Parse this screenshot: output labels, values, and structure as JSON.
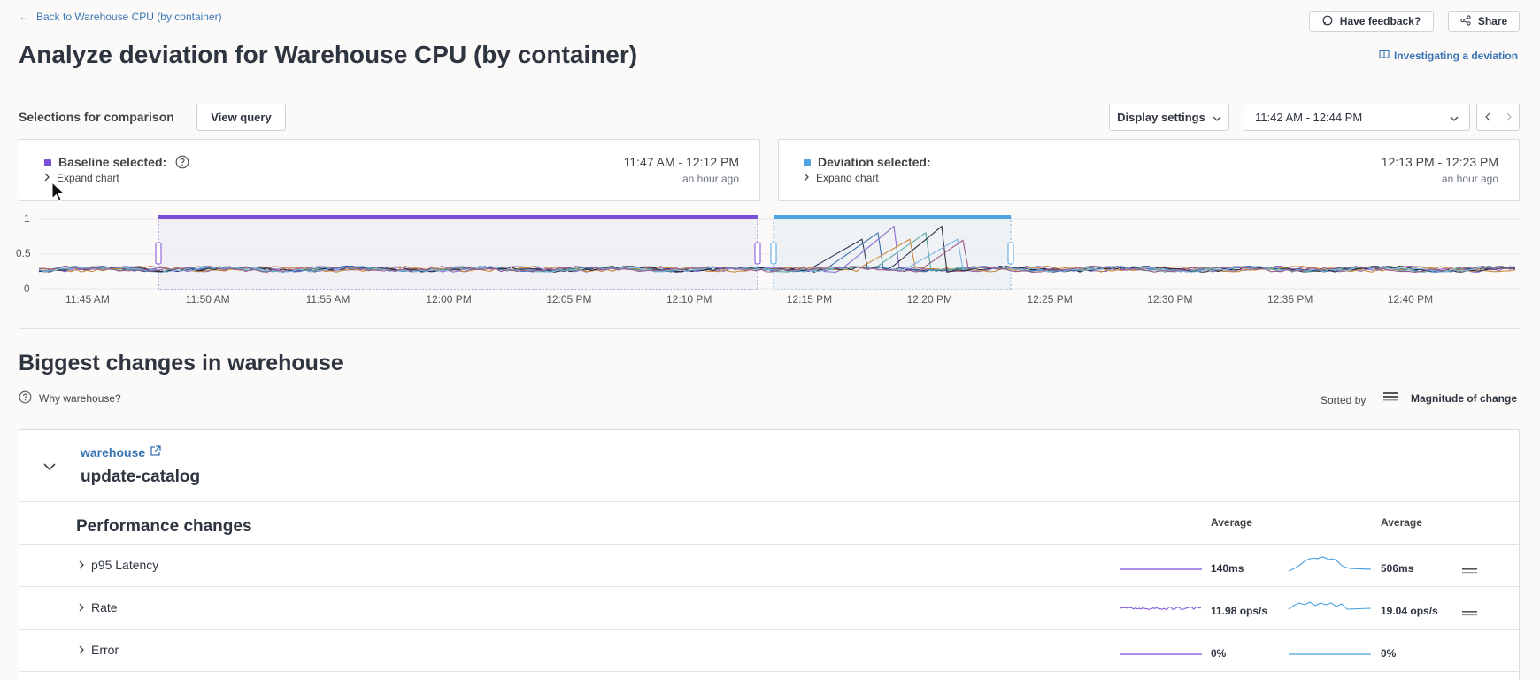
{
  "header": {
    "back_link": "Back to Warehouse CPU (by container)",
    "title": "Analyze deviation for Warehouse CPU (by container)",
    "feedback_label": "Have feedback?",
    "share_label": "Share",
    "guide_link": "Investigating a deviation"
  },
  "toolbar": {
    "selections_label": "Selections for comparison",
    "view_query_label": "View query",
    "display_settings_label": "Display settings",
    "time_range": "11:42 AM - 12:44 PM"
  },
  "baseline": {
    "label": "Baseline selected:",
    "expand_label": "Expand chart",
    "range": "11:47 AM - 12:12 PM",
    "ago": "an hour ago",
    "color": "#7b4fd6"
  },
  "deviation": {
    "label": "Deviation selected:",
    "expand_label": "Expand chart",
    "range": "12:13 PM - 12:23 PM",
    "ago": "an hour ago",
    "color": "#4fa3e0"
  },
  "chart_data": {
    "type": "line",
    "y_ticks": [
      "1",
      "0.5",
      "0"
    ],
    "ylim": [
      0,
      1
    ],
    "x_ticks": [
      "11:45 AM",
      "11:50 AM",
      "11:55 AM",
      "12:00 PM",
      "12:05 PM",
      "12:10 PM",
      "12:15 PM",
      "12:20 PM",
      "12:25 PM",
      "12:30 PM",
      "12:35 PM",
      "12:40 PM"
    ],
    "baseline_level": 0.28,
    "deviation_peak": 0.9
  },
  "changes": {
    "title": "Biggest changes in warehouse",
    "why_label": "Why warehouse?",
    "sorted_by_label": "Sorted by",
    "sort_value": "Magnitude of change",
    "service_link": "warehouse",
    "endpoint": "update-catalog",
    "section_title": "Performance changes",
    "col_baseline": "Average",
    "col_deviation": "Average",
    "rows": [
      {
        "name": "p95 Latency",
        "baseline": "140ms",
        "deviation": "506ms"
      },
      {
        "name": "Rate",
        "baseline": "11.98 ops/s",
        "deviation": "19.04 ops/s"
      },
      {
        "name": "Error",
        "baseline": "0%",
        "deviation": "0%"
      }
    ]
  }
}
